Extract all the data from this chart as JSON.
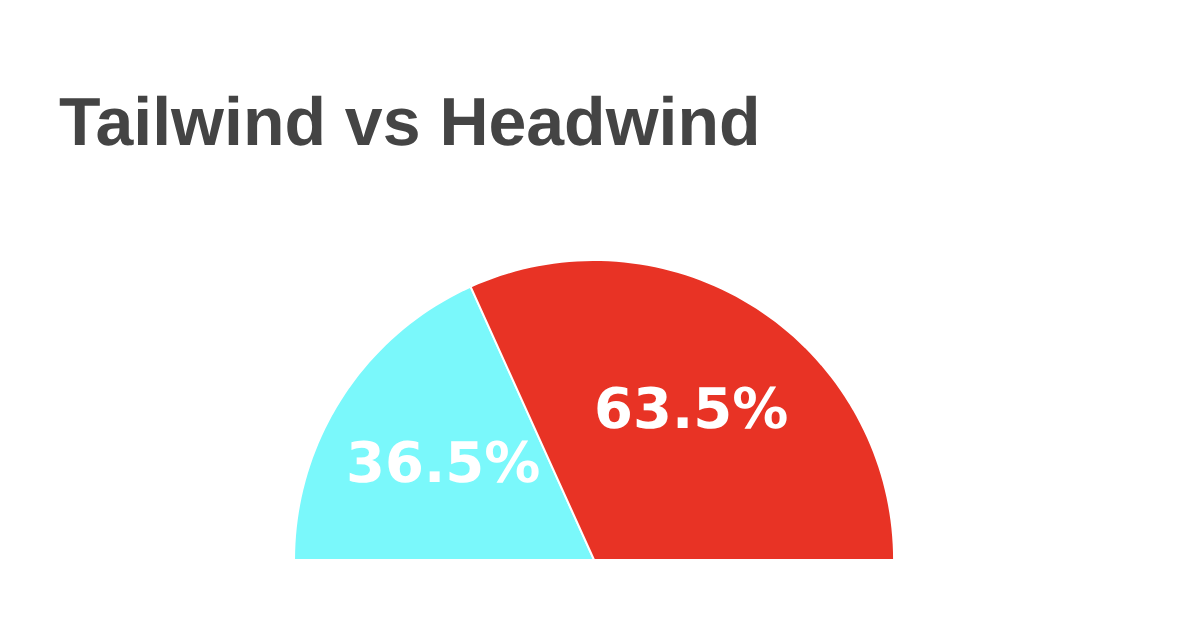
{
  "chart_data": {
    "type": "pie",
    "title": "Tailwind vs Headwind",
    "categories": [
      null,
      null
    ],
    "values": [
      36.5,
      63.5
    ],
    "colors": [
      "#7af8fb",
      "#e83325"
    ],
    "value_labels": [
      "36.5%",
      "63.5%"
    ]
  }
}
